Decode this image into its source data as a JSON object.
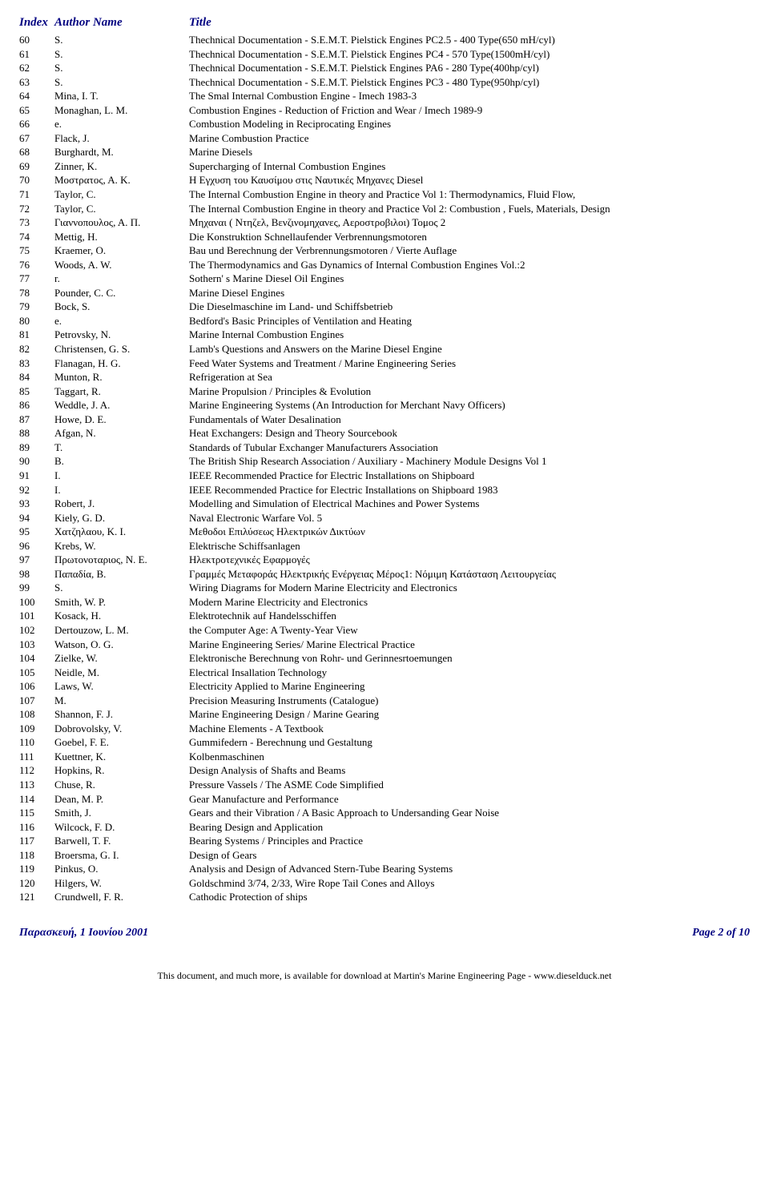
{
  "header": {
    "index": "Index",
    "author": "Author Name",
    "title": "Title"
  },
  "rows": [
    {
      "i": "60",
      "a": "S.",
      "t": "Thechnical Documentation - S.E.M.T. Pielstick Engines PC2.5 - 400 Type(650 mH/cyl)"
    },
    {
      "i": "61",
      "a": "S.",
      "t": "Thechnical Documentation - S.E.M.T. Pielstick Engines PC4  - 570 Type(1500mH/cyl)"
    },
    {
      "i": "62",
      "a": "S.",
      "t": "Thechnical Documentation - S.E.M.T. Pielstick Engines PA6 - 280 Type(400hp/cyl)"
    },
    {
      "i": "63",
      "a": "S.",
      "t": "Thechnical Documentation - S.E.M.T. Pielstick Engines PC3  - 480 Type(950hp/cyl)"
    },
    {
      "i": "64",
      "a": "Mina, I. T.",
      "t": "The Smal Internal Combustion Engine - Imech 1983-3"
    },
    {
      "i": "65",
      "a": "Monaghan, L. M.",
      "t": "Combustion Engines - Reduction of Friction and Wear / Imech 1989-9"
    },
    {
      "i": "66",
      "a": "e.",
      "t": "Combustion Modeling in Reciprocating Engines"
    },
    {
      "i": "67",
      "a": "Flack, J.",
      "t": "Marine Combustion Practice"
    },
    {
      "i": "68",
      "a": "Burghardt, M.",
      "t": "Marine Diesels"
    },
    {
      "i": "69",
      "a": "Zinner, K.",
      "t": "Supercharging of Internal Combustion Engines"
    },
    {
      "i": "70",
      "a": "Μοστρατος, Α. Κ.",
      "t": "Η Εγχυση του Καυσίμου στις Ναυτικές Μηχανες Diesel"
    },
    {
      "i": "71",
      "a": "Taylor, C.",
      "t": "The Internal Combustion Engine in theory and Practice Vol 1: Thermodynamics, Fluid Flow,"
    },
    {
      "i": "72",
      "a": "Taylor, C.",
      "t": "The Internal Combustion Engine in theory and Practice Vol 2: Combustion , Fuels, Materials, Design"
    },
    {
      "i": "73",
      "a": "Γιαννοπουλος, Α. Π.",
      "t": "Μηχαναι ( Ντηζελ, Βενζινομηχανες, Αεροστροβιλοι) Τομος 2"
    },
    {
      "i": "74",
      "a": "Mettig, H.",
      "t": "Die Konstruktion Schnellaufender Verbrennungsmotoren"
    },
    {
      "i": "75",
      "a": "Kraemer, O.",
      "t": "Bau und Berechnung der Verbrennungsmotoren / Vierte Auflage"
    },
    {
      "i": "76",
      "a": "Woods, A. W.",
      "t": "The Thermodynamics and Gas Dynamics of Internal Combustion Engines Vol.:2"
    },
    {
      "i": "77",
      "a": "r.",
      "t": " Sothern' s Marine Diesel Oil Engines"
    },
    {
      "i": "78",
      "a": "Pounder, C. C.",
      "t": "Marine Diesel Engines"
    },
    {
      "i": "79",
      "a": "Bock, S.",
      "t": "Die Dieselmaschine im Land- und Schiffsbetrieb"
    },
    {
      "i": "80",
      "a": "e.",
      "t": "Bedford's Basic Principles of Ventilation and Heating"
    },
    {
      "i": "81",
      "a": "Petrovsky, N.",
      "t": "Marine Internal Combustion Engines"
    },
    {
      "i": "82",
      "a": "Christensen, G. S.",
      "t": "Lamb's Questions and Answers on the Marine Diesel Engine"
    },
    {
      "i": "83",
      "a": "Flanagan, H. G.",
      "t": "Feed Water Systems and Treatment / Marine Engineering Series"
    },
    {
      "i": "84",
      "a": "Munton, R.",
      "t": "Refrigeration at Sea"
    },
    {
      "i": "85",
      "a": "Taggart, R.",
      "t": "Marine Propulsion / Principles & Evolution"
    },
    {
      "i": "86",
      "a": "Weddle, J. A.",
      "t": "Marine Engineering Systems (An Introduction for Merchant Navy Officers)"
    },
    {
      "i": "87",
      "a": "Howe, D. E.",
      "t": "Fundamentals of Water Desalination"
    },
    {
      "i": "88",
      "a": "Afgan, N.",
      "t": "Heat Exchangers: Design and Theory Sourcebook"
    },
    {
      "i": "89",
      "a": "T.",
      "t": "Standards of Tubular Exchanger Manufacturers Association"
    },
    {
      "i": "90",
      "a": "B.",
      "t": "The British Ship Research Association / Auxiliary - Machinery Module Designs Vol 1"
    },
    {
      "i": "91",
      "a": "I.",
      "t": "IEEE Recommended Practice for Electric Installations on Shipboard"
    },
    {
      "i": "92",
      "a": "I.",
      "t": "IEEE Recommended Practice for Electric Installations on Shipboard 1983"
    },
    {
      "i": "93",
      "a": "Robert, J.",
      "t": "Modelling and Simulation of Electrical Machines and Power Systems"
    },
    {
      "i": "94",
      "a": "Kiely, G. D.",
      "t": "Naval Electronic Warfare Vol. 5"
    },
    {
      "i": "95",
      "a": "Χατζηλαου, Κ. Ι.",
      "t": "Μεθοδοι Επιλύσεως Ηλεκτρικών Δικτύων"
    },
    {
      "i": "96",
      "a": "Krebs, W.",
      "t": "Elektrische Schiffsanlagen"
    },
    {
      "i": "97",
      "a": "Πρωτονοταριος, Ν. Ε.",
      "t": "Ηλεκτροτεχνικές Εφαρμογές"
    },
    {
      "i": "98",
      "a": "Παπαδία, Β.",
      "t": "Γραμμές Μεταφοράς Ηλεκτρικής Ενέργειας Μέρος1: Νόμιμη Κατάσταση Λειτουργείας"
    },
    {
      "i": "99",
      "a": "S.",
      "t": "Wiring Diagrams for Modern Marine Electricity and Electronics"
    },
    {
      "i": "100",
      "a": "Smith, W. P.",
      "t": "Modern Marine Electricity and Electronics"
    },
    {
      "i": "101",
      "a": "Kosack, H.",
      "t": "Elektrotechnik auf Handelsschiffen"
    },
    {
      "i": "102",
      "a": "Dertouzow, L. M.",
      "t": "the Computer Age: A Twenty-Year View"
    },
    {
      "i": "103",
      "a": "Watson, O. G.",
      "t": "Marine Engineering Series/ Marine Electrical Practice"
    },
    {
      "i": "104",
      "a": "Zielke, W.",
      "t": "Elektronische Berechnung von Rohr- und Gerinnesrtoemungen"
    },
    {
      "i": "105",
      "a": "Neidle, M.",
      "t": "Electrical Insallation Technology"
    },
    {
      "i": "106",
      "a": "Laws, W.",
      "t": "Electricity Applied to Marine Engineering"
    },
    {
      "i": "107",
      "a": "M.",
      "t": "Precision Measuring Instruments (Catalogue)"
    },
    {
      "i": "108",
      "a": "Shannon, F. J.",
      "t": "Marine Engineering Design / Marine Gearing"
    },
    {
      "i": "109",
      "a": "Dobrovolsky, V.",
      "t": "Machine Elements - A Textbook"
    },
    {
      "i": "110",
      "a": "Goebel, F. E.",
      "t": "Gummifedern - Berechnung und Gestaltung"
    },
    {
      "i": "111",
      "a": "Kuettner, K.",
      "t": "Kolbenmaschinen"
    },
    {
      "i": "112",
      "a": "Hopkins, R.",
      "t": "Design Analysis of Shafts and Beams"
    },
    {
      "i": "113",
      "a": "Chuse, R.",
      "t": "Pressure Vassels / The ASME Code Simplified"
    },
    {
      "i": "114",
      "a": "Dean, M. P.",
      "t": "Gear Manufacture and Performance"
    },
    {
      "i": "115",
      "a": "Smith, J.",
      "t": "Gears and their Vibration / A Basic Approach to Undersanding Gear Noise"
    },
    {
      "i": "116",
      "a": "Wilcock, F. D.",
      "t": "Bearing Design and Application"
    },
    {
      "i": "117",
      "a": "Barwell, T. F.",
      "t": "Bearing Systems / Principles and Practice"
    },
    {
      "i": "118",
      "a": "Broersma, G. I.",
      "t": "Design of Gears"
    },
    {
      "i": "119",
      "a": "Pinkus, O.",
      "t": "Analysis and Design of Advanced Stern-Tube Bearing Systems"
    },
    {
      "i": "120",
      "a": "Hilgers, W.",
      "t": "Goldschmind 3/74, 2/33, Wire Rope Tail Cones and Alloys"
    },
    {
      "i": "121",
      "a": "Crundwell, F. R.",
      "t": "Cathodic Protection of ships"
    }
  ],
  "footer": {
    "date": "Παρασκευή, 1 Ιουνίου 2001",
    "page": "Page 2 of 10"
  },
  "bottom_note": "This document, and much more, is available for download at Martin's Marine Engineering Page - www.dieselduck.net"
}
